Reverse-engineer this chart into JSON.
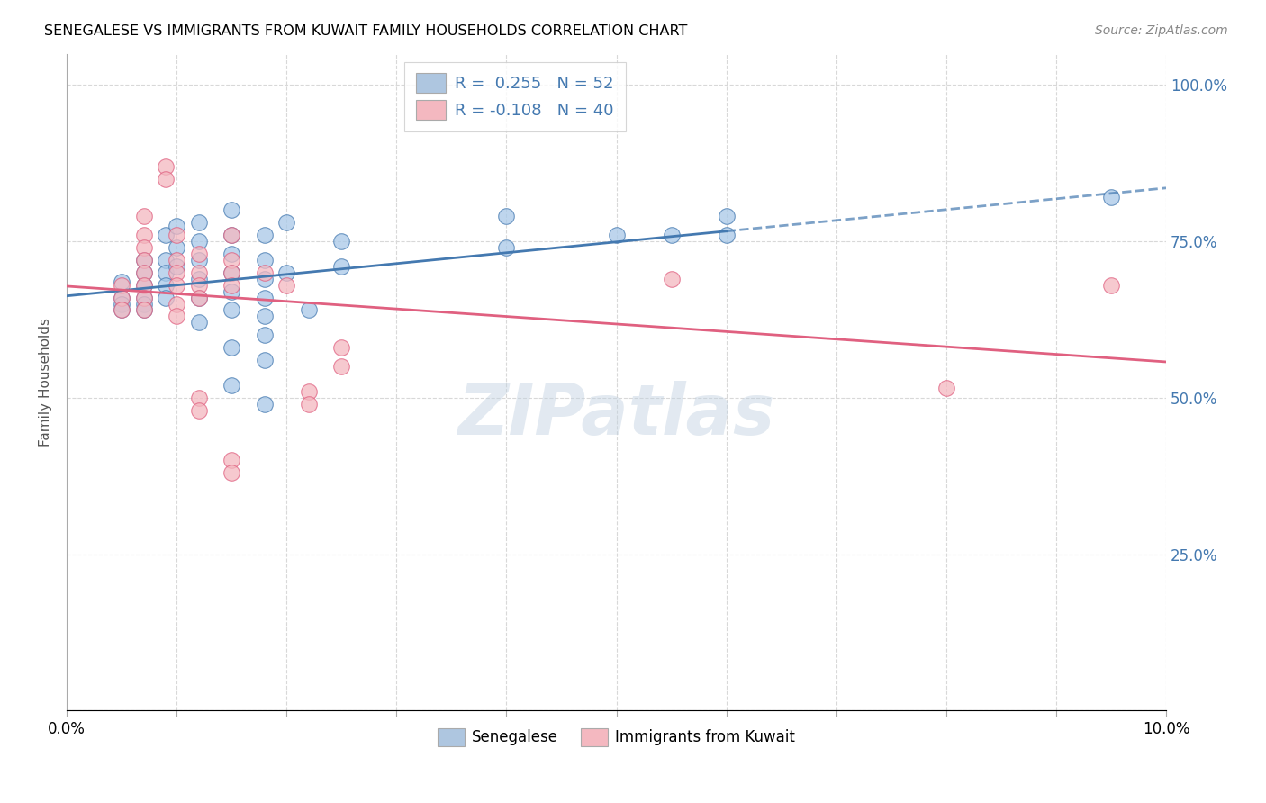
{
  "title": "SENEGALESE VS IMMIGRANTS FROM KUWAIT FAMILY HOUSEHOLDS CORRELATION CHART",
  "source": "Source: ZipAtlas.com",
  "ylabel": "Family Households",
  "right_yticks": [
    "100.0%",
    "75.0%",
    "50.0%",
    "25.0%"
  ],
  "right_ytick_vals": [
    1.0,
    0.75,
    0.5,
    0.25
  ],
  "blue_color": "#a8c8e8",
  "blue_line_color": "#4479b0",
  "blue_fill_color": "#aec6e0",
  "pink_color": "#f4b8c0",
  "pink_line_color": "#e06080",
  "pink_fill_color": "#f4b8c0",
  "blue_scatter": [
    [
      0.0005,
      0.685
    ],
    [
      0.0005,
      0.66
    ],
    [
      0.0005,
      0.65
    ],
    [
      0.0005,
      0.64
    ],
    [
      0.0007,
      0.72
    ],
    [
      0.0007,
      0.7
    ],
    [
      0.0007,
      0.68
    ],
    [
      0.0007,
      0.66
    ],
    [
      0.0007,
      0.65
    ],
    [
      0.0007,
      0.64
    ],
    [
      0.0009,
      0.76
    ],
    [
      0.0009,
      0.72
    ],
    [
      0.0009,
      0.7
    ],
    [
      0.0009,
      0.68
    ],
    [
      0.0009,
      0.66
    ],
    [
      0.001,
      0.775
    ],
    [
      0.001,
      0.74
    ],
    [
      0.001,
      0.71
    ],
    [
      0.0012,
      0.78
    ],
    [
      0.0012,
      0.75
    ],
    [
      0.0012,
      0.72
    ],
    [
      0.0012,
      0.69
    ],
    [
      0.0012,
      0.66
    ],
    [
      0.0012,
      0.62
    ],
    [
      0.0015,
      0.8
    ],
    [
      0.0015,
      0.76
    ],
    [
      0.0015,
      0.73
    ],
    [
      0.0015,
      0.7
    ],
    [
      0.0015,
      0.67
    ],
    [
      0.0015,
      0.64
    ],
    [
      0.0015,
      0.58
    ],
    [
      0.0015,
      0.52
    ],
    [
      0.0018,
      0.76
    ],
    [
      0.0018,
      0.72
    ],
    [
      0.0018,
      0.69
    ],
    [
      0.0018,
      0.66
    ],
    [
      0.0018,
      0.63
    ],
    [
      0.0018,
      0.6
    ],
    [
      0.0018,
      0.56
    ],
    [
      0.0018,
      0.49
    ],
    [
      0.002,
      0.78
    ],
    [
      0.002,
      0.7
    ],
    [
      0.0022,
      0.64
    ],
    [
      0.0025,
      0.75
    ],
    [
      0.0025,
      0.71
    ],
    [
      0.004,
      0.79
    ],
    [
      0.004,
      0.74
    ],
    [
      0.005,
      0.76
    ],
    [
      0.0055,
      0.76
    ],
    [
      0.006,
      0.79
    ],
    [
      0.006,
      0.76
    ],
    [
      0.0095,
      0.82
    ]
  ],
  "pink_scatter": [
    [
      0.0005,
      0.68
    ],
    [
      0.0005,
      0.66
    ],
    [
      0.0005,
      0.64
    ],
    [
      0.0007,
      0.79
    ],
    [
      0.0007,
      0.76
    ],
    [
      0.0007,
      0.74
    ],
    [
      0.0007,
      0.72
    ],
    [
      0.0007,
      0.7
    ],
    [
      0.0007,
      0.68
    ],
    [
      0.0007,
      0.66
    ],
    [
      0.0007,
      0.64
    ],
    [
      0.0009,
      0.87
    ],
    [
      0.0009,
      0.85
    ],
    [
      0.001,
      0.76
    ],
    [
      0.001,
      0.72
    ],
    [
      0.001,
      0.7
    ],
    [
      0.001,
      0.68
    ],
    [
      0.001,
      0.65
    ],
    [
      0.001,
      0.63
    ],
    [
      0.0012,
      0.73
    ],
    [
      0.0012,
      0.7
    ],
    [
      0.0012,
      0.68
    ],
    [
      0.0012,
      0.66
    ],
    [
      0.0012,
      0.5
    ],
    [
      0.0012,
      0.48
    ],
    [
      0.0015,
      0.76
    ],
    [
      0.0015,
      0.72
    ],
    [
      0.0015,
      0.7
    ],
    [
      0.0015,
      0.68
    ],
    [
      0.0015,
      0.4
    ],
    [
      0.0015,
      0.38
    ],
    [
      0.0018,
      0.7
    ],
    [
      0.002,
      0.68
    ],
    [
      0.0022,
      0.51
    ],
    [
      0.0022,
      0.49
    ],
    [
      0.0025,
      0.58
    ],
    [
      0.0025,
      0.55
    ],
    [
      0.0055,
      0.69
    ],
    [
      0.008,
      0.515
    ],
    [
      0.0095,
      0.68
    ]
  ],
  "xlim": [
    0.0,
    0.01
  ],
  "ylim": [
    0.0,
    1.05
  ],
  "x_tick_vals": [
    0.0,
    0.001,
    0.002,
    0.003,
    0.004,
    0.005,
    0.006,
    0.007,
    0.008,
    0.009,
    0.01
  ],
  "grid_color": "#d8d8d8",
  "watermark": "ZIPatlas",
  "watermark_color": "#c0d0e0",
  "watermark_alpha": 0.45,
  "blue_line_solid_end": 0.006,
  "pink_line_end": 0.01
}
